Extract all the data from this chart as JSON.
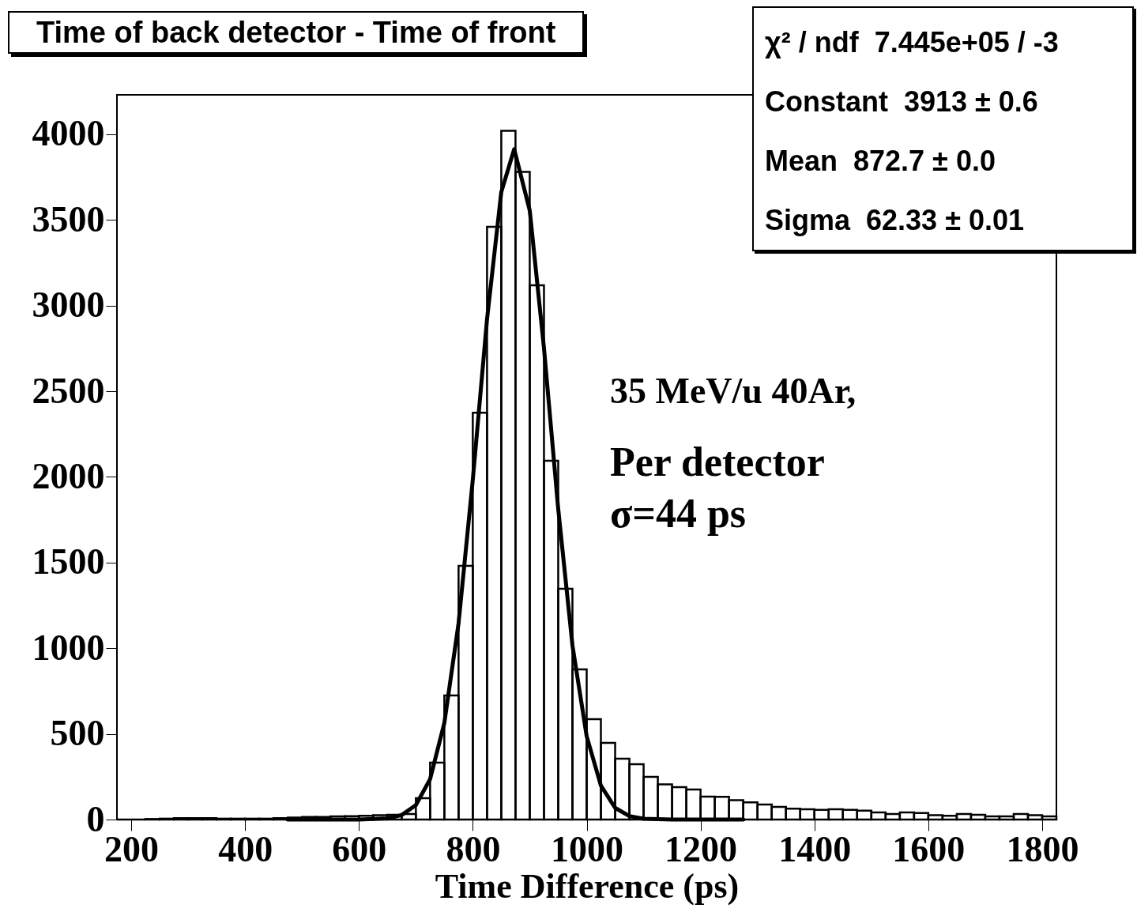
{
  "chart_data": {
    "type": "histogram",
    "title": "Time of back detector - Time of front",
    "xlabel": "Time Difference (ps)",
    "xlim": [
      175,
      1825
    ],
    "xticks": [
      200,
      400,
      600,
      800,
      1000,
      1200,
      1400,
      1600,
      1800
    ],
    "ylim": [
      0,
      4230
    ],
    "yticks": [
      0,
      500,
      1000,
      1500,
      2000,
      2500,
      3000,
      3500,
      4000
    ],
    "grid": false,
    "marker": "none",
    "series": [
      {
        "color": "#000000",
        "bins": [
          175,
          200,
          225,
          250,
          275,
          300,
          325,
          350,
          375,
          400,
          425,
          450,
          475,
          500,
          525,
          550,
          575,
          600,
          625,
          650,
          675,
          700,
          725,
          750,
          775,
          800,
          825,
          850,
          875,
          900,
          925,
          950,
          975,
          1000,
          1025,
          1050,
          1075,
          1100,
          1125,
          1150,
          1175,
          1200,
          1225,
          1250,
          1275,
          1300,
          1325,
          1350,
          1375,
          1400,
          1425,
          1450,
          1475,
          1500,
          1525,
          1550,
          1575,
          1600,
          1625,
          1650,
          1675,
          1700,
          1725,
          1750,
          1775,
          1800,
          1825
        ],
        "values": [
          0,
          0,
          3,
          5,
          8,
          8,
          8,
          5,
          5,
          5,
          5,
          8,
          12,
          15,
          15,
          18,
          20,
          22,
          25,
          28,
          32,
          125,
          332,
          724,
          1481,
          2375,
          3460,
          4020,
          3780,
          3118,
          2094,
          1347,
          876,
          586,
          447,
          355,
          323,
          249,
          205,
          189,
          175,
          134,
          133,
          113,
          100,
          88,
          74,
          64,
          60,
          56,
          60,
          56,
          52,
          42,
          32,
          42,
          38,
          25,
          22,
          32,
          28,
          18,
          18,
          32,
          25,
          18
        ]
      },
      {
        "type": "line",
        "color": "#000000",
        "line_style": "solid",
        "x": [
          475,
          550,
          600,
          650,
          675,
          700,
          725,
          750,
          775,
          800,
          825,
          850,
          872.7,
          900,
          925,
          950,
          975,
          1000,
          1025,
          1050,
          1075,
          1100,
          1150,
          1275
        ],
        "values": [
          0,
          0,
          0,
          7,
          26,
          84,
          236,
          563,
          1146,
          1983,
          2920,
          3662,
          3913,
          3555,
          2752,
          1814,
          1017,
          486,
          198,
          68,
          20,
          5,
          0,
          0
        ]
      }
    ],
    "annotations": [
      "χ² / ndf  7.445e+05 / -3",
      "Constant  3913 ± 0.6",
      "Mean  872.7 ± 0.0",
      "Sigma  62.33 ± 0.01",
      "35 MeV/u 40Ar,",
      "Per detector",
      "σ=44 ps"
    ]
  }
}
